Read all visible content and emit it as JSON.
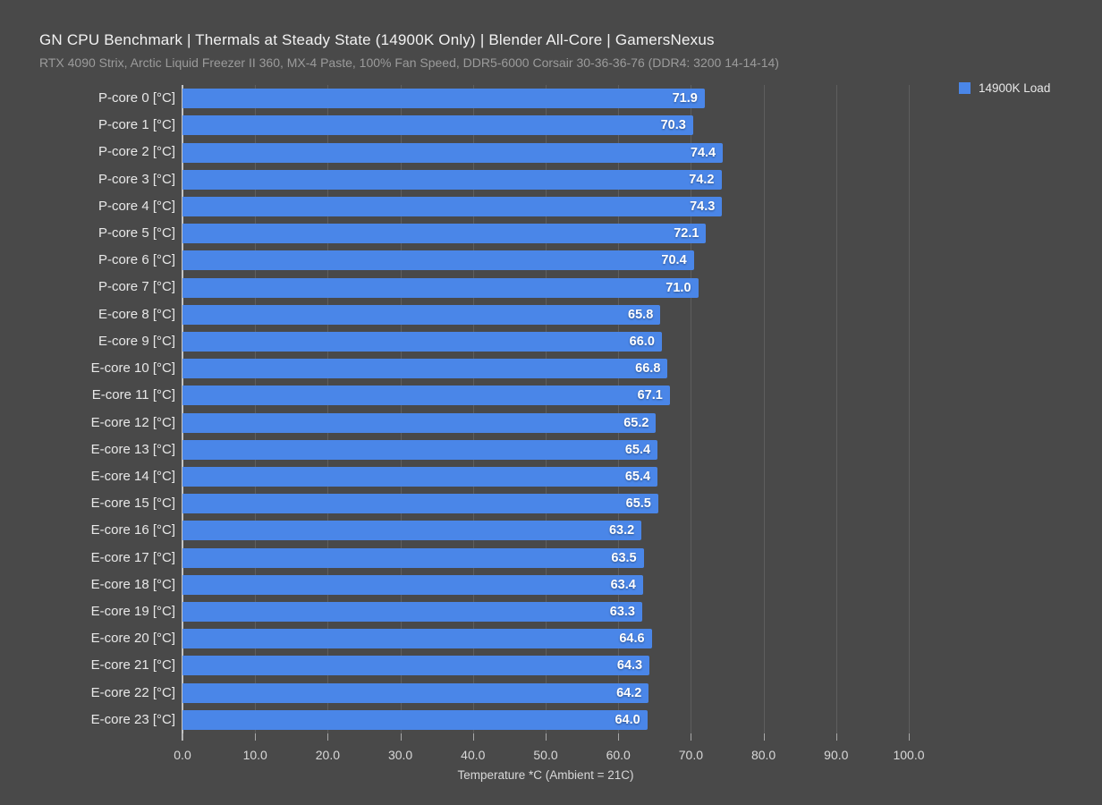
{
  "chart_data": {
    "type": "bar",
    "orientation": "horizontal",
    "title": "GN CPU Benchmark | Thermals at Steady State (14900K Only) | Blender All-Core | GamersNexus",
    "subtitle": "RTX 4090 Strix, Arctic Liquid Freezer II 360, MX-4 Paste, 100% Fan Speed, DDR5-6000 Corsair 30-36-36-76 (DDR4: 3200 14-14-14)",
    "categories": [
      "P-core 0 [°C]",
      "P-core 1 [°C]",
      "P-core 2 [°C]",
      "P-core 3 [°C]",
      "P-core 4 [°C]",
      "P-core 5 [°C]",
      "P-core 6 [°C]",
      "P-core 7 [°C]",
      "E-core 8 [°C]",
      "E-core 9 [°C]",
      "E-core 10 [°C]",
      "E-core 11 [°C]",
      "E-core 12 [°C]",
      "E-core 13 [°C]",
      "E-core 14 [°C]",
      "E-core 15 [°C]",
      "E-core 16 [°C]",
      "E-core 17 [°C]",
      "E-core 18 [°C]",
      "E-core 19 [°C]",
      "E-core 20 [°C]",
      "E-core 21 [°C]",
      "E-core 22 [°C]",
      "E-core 23 [°C]"
    ],
    "series": [
      {
        "name": "14900K Load",
        "values": [
          71.9,
          70.3,
          74.4,
          74.2,
          74.3,
          72.1,
          70.4,
          71.0,
          65.8,
          66.0,
          66.8,
          67.1,
          65.2,
          65.4,
          65.4,
          65.5,
          63.2,
          63.5,
          63.4,
          63.3,
          64.6,
          64.3,
          64.2,
          64.0
        ]
      }
    ],
    "xlabel": "Temperature *C (Ambient = 21C)",
    "ylabel": "",
    "xlim": [
      0,
      100
    ],
    "xticks": [
      0,
      10,
      20,
      30,
      40,
      50,
      60,
      70,
      80,
      90,
      100
    ],
    "tick_decimals": 1,
    "value_label_decimals": 1,
    "grid": "vertical",
    "legend_position": "top-right",
    "colors": {
      "background": "#494949",
      "bar": "#4a86e8",
      "gridline": "#5e5e5e",
      "baseline": "#c4c4c4",
      "tickmark": "#a8a8a8",
      "title_text": "#f2f2f2",
      "subtitle_text": "#9b9b9b",
      "category_label_text": "#e8e8e8",
      "tick_label_text": "#d8d8d8",
      "value_label_text": "#ffffff"
    }
  }
}
